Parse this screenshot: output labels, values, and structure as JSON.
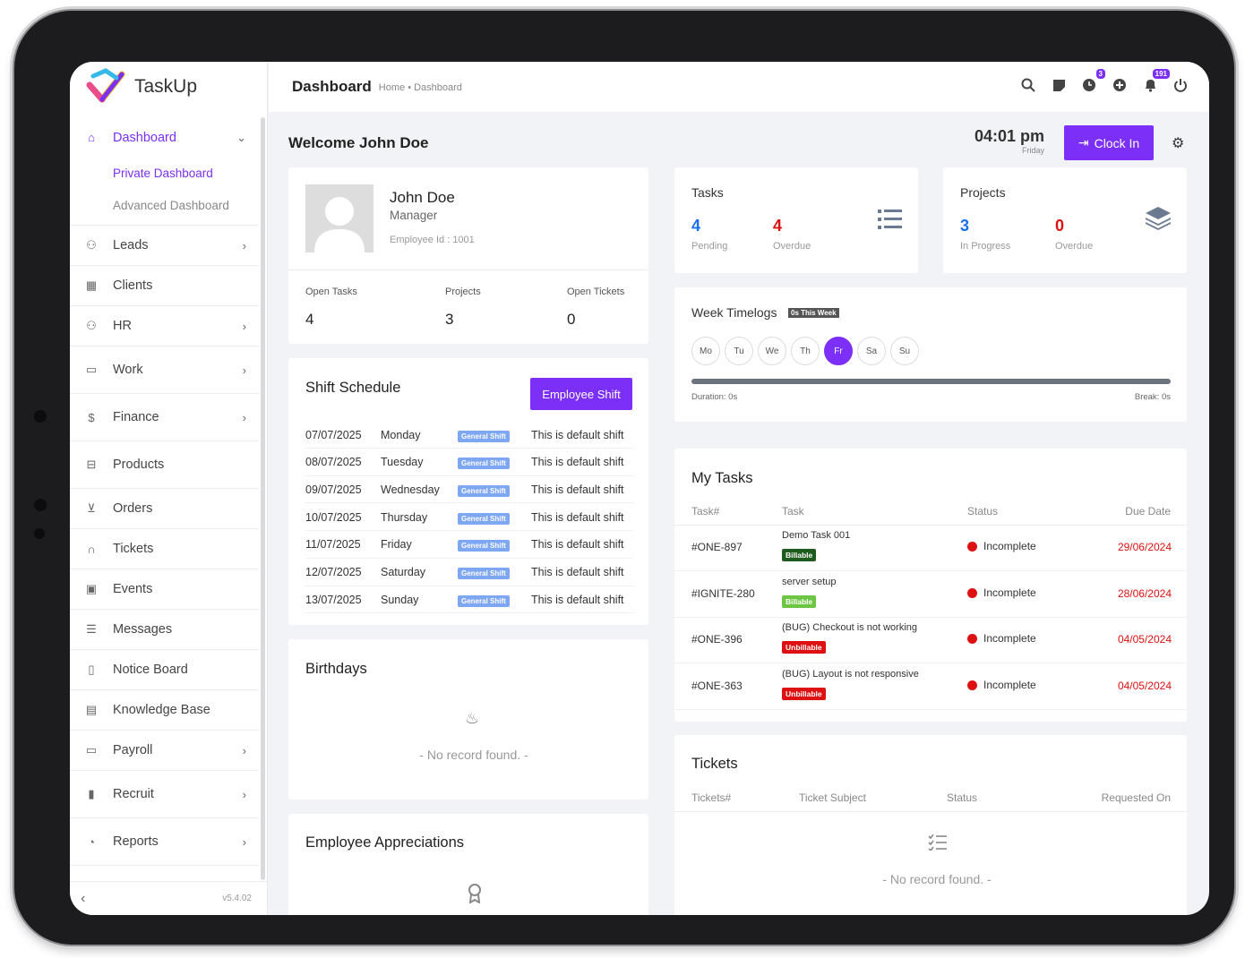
{
  "app": {
    "name": "TaskUp",
    "version": "v5.4.02"
  },
  "sidebar": {
    "items": [
      {
        "label": "Dashboard",
        "icon": "home-icon"
      },
      {
        "label": "Leads",
        "icon": "users-icon"
      },
      {
        "label": "Clients",
        "icon": "building-icon"
      },
      {
        "label": "HR",
        "icon": "users-icon"
      },
      {
        "label": "Work",
        "icon": "briefcase-icon"
      },
      {
        "label": "Finance",
        "icon": "dollar-icon"
      },
      {
        "label": "Products",
        "icon": "basket-icon"
      },
      {
        "label": "Orders",
        "icon": "cart-icon"
      },
      {
        "label": "Tickets",
        "icon": "headset-icon"
      },
      {
        "label": "Events",
        "icon": "calendar-icon"
      },
      {
        "label": "Messages",
        "icon": "message-icon"
      },
      {
        "label": "Notice Board",
        "icon": "clipboard-icon"
      },
      {
        "label": "Knowledge Base",
        "icon": "document-icon"
      },
      {
        "label": "Payroll",
        "icon": "wallet-icon"
      },
      {
        "label": "Recruit",
        "icon": "badge-icon"
      },
      {
        "label": "Reports",
        "icon": "pie-chart-icon"
      }
    ],
    "sub": [
      "Private Dashboard",
      "Advanced Dashboard"
    ]
  },
  "header": {
    "title": "Dashboard",
    "crumb": "Home • Dashboard",
    "badge_clock": "3",
    "badge_bell": "191"
  },
  "welcome": "Welcome John Doe",
  "clock": {
    "time": "04:01 pm",
    "day": "Friday",
    "button": "Clock In"
  },
  "profile": {
    "name": "John Doe",
    "role": "Manager",
    "emp_id": "Employee Id : 1001",
    "open_tasks_label": "Open Tasks",
    "open_tasks": "4",
    "projects_label": "Projects",
    "projects": "3",
    "open_tickets_label": "Open Tickets",
    "open_tickets": "0"
  },
  "tasks_card": {
    "title": "Tasks",
    "pending": "4",
    "pending_label": "Pending",
    "overdue": "4",
    "overdue_label": "Overdue"
  },
  "projects_card": {
    "title": "Projects",
    "inprog": "3",
    "inprog_label": "In Progress",
    "overdue": "0",
    "overdue_label": "Overdue"
  },
  "shift": {
    "title": "Shift Schedule",
    "button": "Employee Shift",
    "rows": [
      {
        "date": "07/07/2025",
        "day": "Monday",
        "type": "General Shift",
        "desc": "This is default shift"
      },
      {
        "date": "08/07/2025",
        "day": "Tuesday",
        "type": "General Shift",
        "desc": "This is default shift"
      },
      {
        "date": "09/07/2025",
        "day": "Wednesday",
        "type": "General Shift",
        "desc": "This is default shift"
      },
      {
        "date": "10/07/2025",
        "day": "Thursday",
        "type": "General Shift",
        "desc": "This is default shift"
      },
      {
        "date": "11/07/2025",
        "day": "Friday",
        "type": "General Shift",
        "desc": "This is default shift"
      },
      {
        "date": "12/07/2025",
        "day": "Saturday",
        "type": "General Shift",
        "desc": "This is default shift"
      },
      {
        "date": "13/07/2025",
        "day": "Sunday",
        "type": "General Shift",
        "desc": "This is default shift"
      }
    ]
  },
  "timelogs": {
    "title": "Week Timelogs",
    "badge": "0s This Week",
    "days": [
      "Mo",
      "Tu",
      "We",
      "Th",
      "Fr",
      "Sa",
      "Su"
    ],
    "duration": "Duration: 0s",
    "break": "Break: 0s"
  },
  "mytasks": {
    "title": "My Tasks",
    "cols": [
      "Task#",
      "Task",
      "Status",
      "Due Date"
    ],
    "rows": [
      {
        "id": "#ONE-897",
        "name": "Demo Task 001",
        "tag": "Billable",
        "tag_color": "#1e5c1e",
        "status": "Incomplete",
        "due": "29/06/2024"
      },
      {
        "id": "#IGNITE-280",
        "name": "server setup",
        "tag": "Billable",
        "tag_color": "#6cc644",
        "status": "Incomplete",
        "due": "28/06/2024"
      },
      {
        "id": "#ONE-396",
        "name": "(BUG) Checkout is not working",
        "tag": "Unbillable",
        "tag_color": "#d11",
        "status": "Incomplete",
        "due": "04/05/2024"
      },
      {
        "id": "#ONE-363",
        "name": "(BUG) Layout is not responsive",
        "tag": "Unbillable",
        "tag_color": "#d11",
        "status": "Incomplete",
        "due": "04/05/2024"
      }
    ]
  },
  "birthdays": {
    "title": "Birthdays",
    "empty": "- No record found. -"
  },
  "appreciations": {
    "title": "Employee Appreciations"
  },
  "tickets": {
    "title": "Tickets",
    "cols": [
      "Tickets#",
      "Ticket Subject",
      "Status",
      "Requested On"
    ],
    "empty": "- No record found. -"
  },
  "colors": {
    "accent": "#7b2ff7",
    "danger": "#dd1111",
    "blue": "#1a6ee8"
  }
}
